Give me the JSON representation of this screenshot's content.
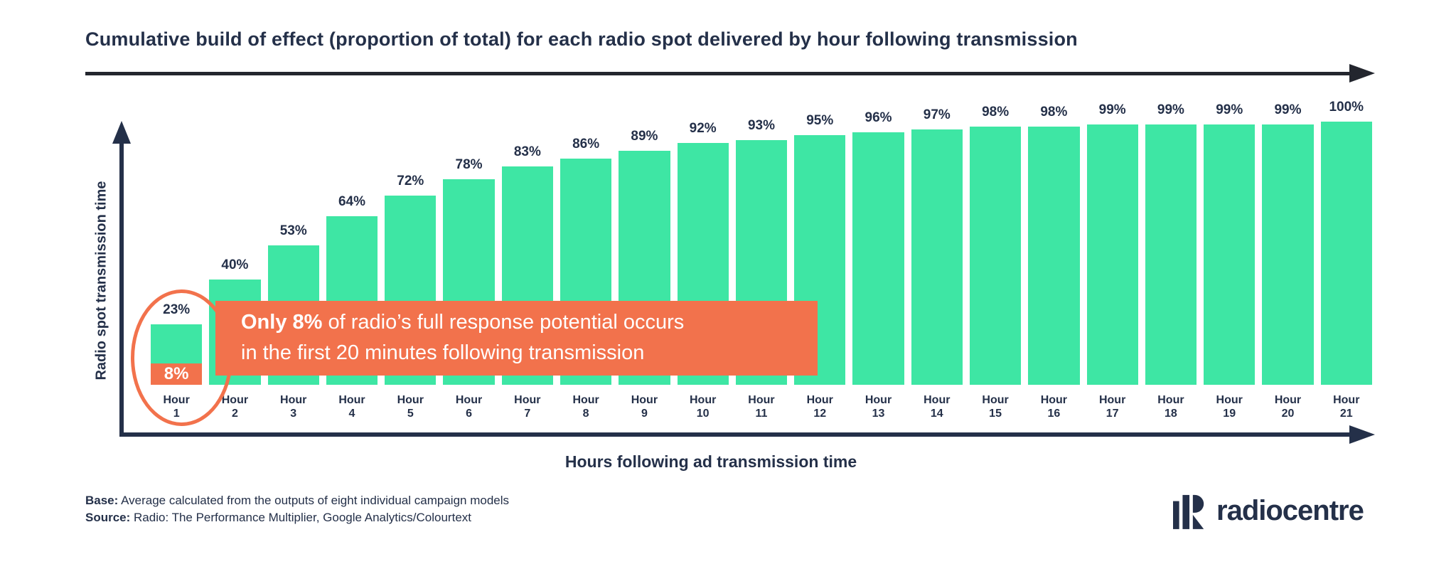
{
  "title": "Cumulative build of effect (proportion of total) for each radio spot delivered by hour following transmission",
  "chart_data": {
    "type": "bar",
    "categories": [
      "Hour 1",
      "Hour 2",
      "Hour 3",
      "Hour 4",
      "Hour 5",
      "Hour 6",
      "Hour 7",
      "Hour 8",
      "Hour 9",
      "Hour 10",
      "Hour 11",
      "Hour 12",
      "Hour 13",
      "Hour 14",
      "Hour 15",
      "Hour 16",
      "Hour 17",
      "Hour 18",
      "Hour 19",
      "Hour 20",
      "Hour 21"
    ],
    "values": [
      23,
      40,
      53,
      64,
      72,
      78,
      83,
      86,
      89,
      92,
      93,
      95,
      96,
      97,
      98,
      98,
      99,
      99,
      99,
      99,
      100
    ],
    "value_suffix": "%",
    "xlabel": "Hours following ad transmission time",
    "ylabel": "Radio spot transmission time",
    "ylim": [
      0,
      100
    ],
    "grid": false,
    "legend": "none",
    "bar_color": "#3EE6A4",
    "highlight": {
      "category": "Hour 1",
      "segment_value": 8,
      "segment_label": "8%",
      "segment_color": "#F2724C",
      "callout_bold_text": "Only 8%",
      "callout_line1_rest": " of radio’s full response potential occurs",
      "callout_line2": "in the first 20 minutes following transmission"
    }
  },
  "footer": {
    "base_label": "Base:",
    "base_text": " Average calculated from the outputs of eight individual campaign models",
    "source_label": "Source:",
    "source_text": " Radio: The Performance Multiplier, Google Analytics/Colourtext"
  },
  "logo": {
    "text": "radiocentre"
  },
  "colors": {
    "navy": "#243049",
    "green": "#3EE6A4",
    "orange": "#F2724C",
    "arrow_dark": "#23262e",
    "background": "#ffffff"
  }
}
